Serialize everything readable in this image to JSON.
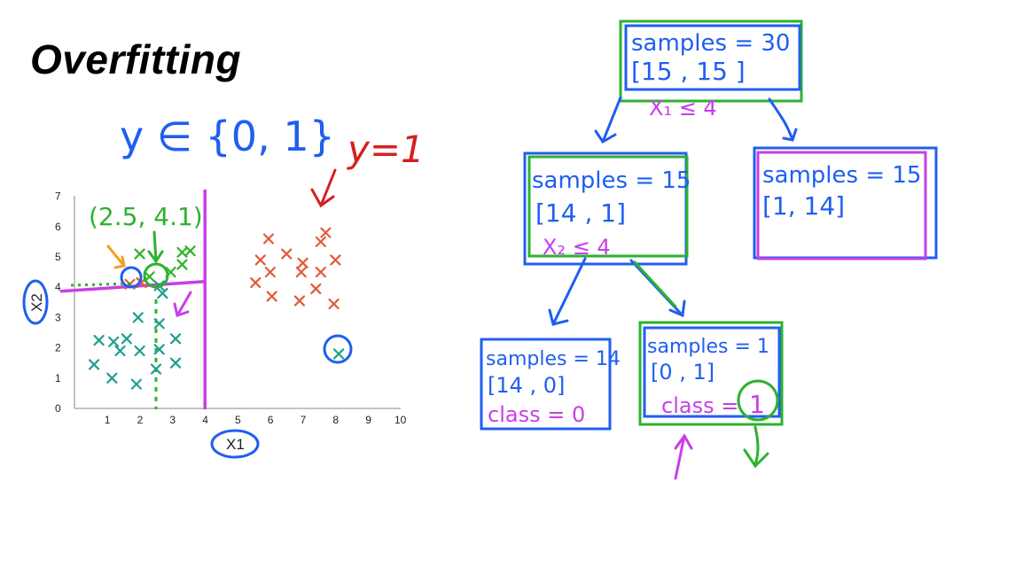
{
  "title": "Overfitting",
  "annotations": {
    "label_set": "y ∈ {0, 1}",
    "label_y1": "y=1",
    "threshold_pair": "(2.5, 4.1)"
  },
  "chart_data": {
    "type": "scatter",
    "xlabel": "X1",
    "ylabel": "X2",
    "xlim": [
      0,
      10
    ],
    "ylim": [
      0,
      7
    ],
    "xticks": [
      "1",
      "2",
      "3",
      "4",
      "5",
      "6",
      "7",
      "8",
      "9",
      "10"
    ],
    "yticks": [
      "0",
      "1",
      "2",
      "3",
      "4",
      "5",
      "6",
      "7"
    ],
    "series": [
      {
        "color": "#e25a3a",
        "marker": "x",
        "points": [
          [
            7.7,
            5.8
          ],
          [
            5.95,
            5.6
          ],
          [
            7.55,
            5.5
          ],
          [
            6.5,
            5.1
          ],
          [
            5.7,
            4.9
          ],
          [
            7.0,
            4.8
          ],
          [
            8.0,
            4.9
          ],
          [
            6.0,
            4.5
          ],
          [
            6.95,
            4.5
          ],
          [
            7.55,
            4.5
          ],
          [
            5.55,
            4.15
          ],
          [
            7.4,
            3.95
          ],
          [
            6.05,
            3.7
          ],
          [
            6.9,
            3.55
          ],
          [
            7.95,
            3.45
          ],
          [
            2.05,
            4.15
          ],
          [
            1.7,
            4.1
          ]
        ]
      },
      {
        "color": "#1f9e8e",
        "marker": "x",
        "points": [
          [
            2.6,
            4.05
          ],
          [
            2.7,
            3.8
          ],
          [
            1.95,
            3.0
          ],
          [
            2.6,
            2.8
          ],
          [
            0.75,
            2.25
          ],
          [
            1.2,
            2.2
          ],
          [
            3.1,
            2.3
          ],
          [
            1.6,
            2.3
          ],
          [
            1.4,
            1.9
          ],
          [
            2.0,
            1.9
          ],
          [
            2.6,
            1.95
          ],
          [
            0.6,
            1.45
          ],
          [
            3.1,
            1.5
          ],
          [
            2.5,
            1.3
          ],
          [
            1.15,
            1.0
          ],
          [
            1.9,
            0.8
          ],
          [
            8.1,
            1.8
          ]
        ]
      },
      {
        "color": "#2db22d",
        "marker": "x",
        "points": [
          [
            2.0,
            5.1
          ],
          [
            3.3,
            5.15
          ],
          [
            3.55,
            5.2
          ],
          [
            3.3,
            4.75
          ],
          [
            2.95,
            4.5
          ],
          [
            2.3,
            4.35
          ]
        ]
      }
    ],
    "splits": [
      {
        "axis": "x",
        "value": 4,
        "color": "#c83ee8"
      },
      {
        "axis": "y",
        "value": 4.1,
        "color": "#c83ee8"
      },
      {
        "axis": "x",
        "value": 2.5,
        "color": "#2db22d"
      }
    ],
    "grid": false
  },
  "tree": {
    "root": {
      "samples": "samples = 30",
      "values": "[15 , 15 ]",
      "rule": "X₁ ≤ 4"
    },
    "left": {
      "samples": "samples = 15",
      "values": "[14 , 1]",
      "rule": "X₂ ≤ 4"
    },
    "right": {
      "samples": "samples = 15",
      "values": "[1, 14]"
    },
    "leaf_left": {
      "samples": "samples = 14",
      "values": "[14 , 0]",
      "class": "class = 0"
    },
    "leaf_right": {
      "samples": "samples = 1",
      "values": "[0 , 1]",
      "class_prefix": "class =",
      "class_value": "1"
    }
  },
  "colors": {
    "blue": "#1f5ff0",
    "green": "#2db22d",
    "magenta": "#c83ee8",
    "red": "#d4211f",
    "orange": "#f2a020"
  }
}
